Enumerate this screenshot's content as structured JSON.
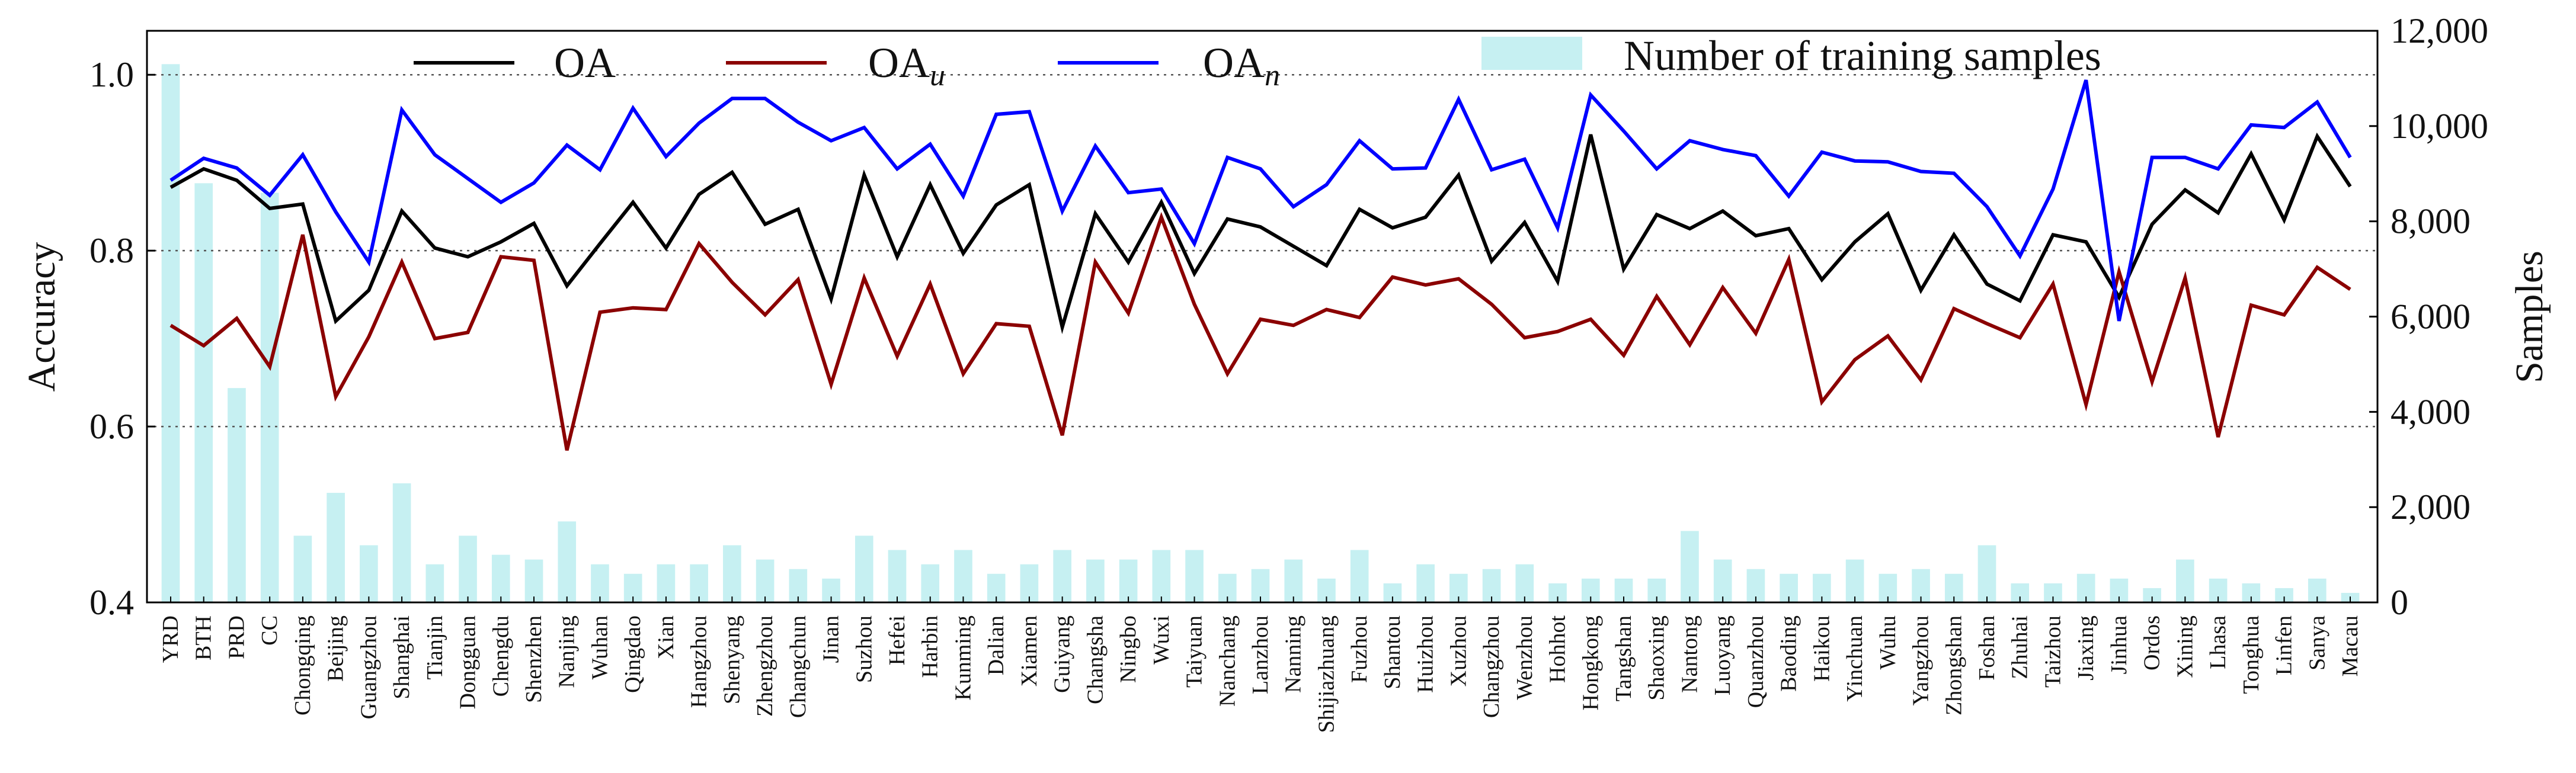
{
  "chart_data": {
    "type": "line+bar",
    "title": "",
    "xlabel": "",
    "ylabel": "Accuracy",
    "y2label": "Samples",
    "ylim": [
      0.4,
      1.05
    ],
    "y2lim": [
      0,
      12000
    ],
    "yticks": [
      "0.4",
      "0.6",
      "0.8",
      "1.0"
    ],
    "y2ticks": [
      "0",
      "2,000",
      "4,000",
      "6,000",
      "8,000",
      "10,000",
      "12,000"
    ],
    "grid": "dotted horizontal at 0.6, 0.8, 1.0",
    "categories": [
      "YRD",
      "BTH",
      "PRD",
      "CC",
      "Chongqing",
      "Beijing",
      "Guangzhou",
      "Shanghai",
      "Tianjin",
      "Dongguan",
      "Chengdu",
      "Shenzhen",
      "Nanjing",
      "Wuhan",
      "Qingdao",
      "Xian",
      "Hangzhou",
      "Shenyang",
      "Zhengzhou",
      "Changchun",
      "Jinan",
      "Suzhou",
      "Hefei",
      "Harbin",
      "Kunming",
      "Dalian",
      "Xiamen",
      "Guiyang",
      "Changsha",
      "Ningbo",
      "Wuxi",
      "Taiyuan",
      "Nanchang",
      "Lanzhou",
      "Nanning",
      "Shijiazhuang",
      "Fuzhou",
      "Shantou",
      "Huizhou",
      "Xuzhou",
      "Changzhou",
      "Wenzhou",
      "Hohhot",
      "Hongkong",
      "Tangshan",
      "Shaoxing",
      "Nantong",
      "Luoyang",
      "Quanzhou",
      "Baoding",
      "Haikou",
      "Yinchuan",
      "Wuhu",
      "Yangzhou",
      "Zhongshan",
      "Foshan",
      "Zhuhai",
      "Taizhou",
      "Jiaxing",
      "Jinhua",
      "Ordos",
      "Xining",
      "Lhasa",
      "Tonghua",
      "Linfen",
      "Sanya",
      "Macau"
    ],
    "series": [
      {
        "name": "OA",
        "legend_main": "OA",
        "legend_sub": "",
        "color": "#000000",
        "values": [
          0.872,
          0.893,
          0.88,
          0.848,
          0.853,
          0.72,
          0.755,
          0.845,
          0.803,
          0.793,
          0.81,
          0.831,
          0.76,
          0.808,
          0.855,
          0.803,
          0.864,
          0.889,
          0.83,
          0.847,
          0.745,
          0.886,
          0.793,
          0.875,
          0.797,
          0.852,
          0.875,
          0.713,
          0.842,
          0.787,
          0.855,
          0.774,
          0.836,
          0.827,
          0.805,
          0.783,
          0.847,
          0.826,
          0.838,
          0.886,
          0.788,
          0.832,
          0.765,
          0.932,
          0.779,
          0.841,
          0.825,
          0.845,
          0.817,
          0.825,
          0.767,
          0.81,
          0.842,
          0.755,
          0.818,
          0.762,
          0.743,
          0.818,
          0.81,
          0.747,
          0.83,
          0.869,
          0.843,
          0.91,
          0.835,
          0.93,
          0.873
        ]
      },
      {
        "name": "OAu",
        "legend_main": "OA",
        "legend_sub": "u",
        "color": "#8b0000",
        "values": [
          0.715,
          0.692,
          0.723,
          0.668,
          0.818,
          0.634,
          0.702,
          0.787,
          0.7,
          0.707,
          0.793,
          0.789,
          0.573,
          0.73,
          0.735,
          0.733,
          0.808,
          0.764,
          0.727,
          0.767,
          0.648,
          0.769,
          0.68,
          0.762,
          0.66,
          0.717,
          0.714,
          0.59,
          0.787,
          0.729,
          0.838,
          0.739,
          0.66,
          0.722,
          0.715,
          0.733,
          0.724,
          0.77,
          0.761,
          0.768,
          0.739,
          0.701,
          0.708,
          0.722,
          0.681,
          0.748,
          0.693,
          0.758,
          0.706,
          0.79,
          0.628,
          0.676,
          0.703,
          0.653,
          0.734,
          0.717,
          0.701,
          0.762,
          0.625,
          0.776,
          0.651,
          0.769,
          0.588,
          0.738,
          0.727,
          0.781,
          0.756
        ]
      },
      {
        "name": "OAn",
        "legend_main": "OA",
        "legend_sub": "n",
        "color": "#0000ff",
        "values": [
          0.88,
          0.905,
          0.894,
          0.863,
          0.909,
          0.844,
          0.787,
          0.96,
          0.909,
          0.882,
          0.855,
          0.877,
          0.92,
          0.892,
          0.962,
          0.907,
          0.945,
          0.973,
          0.973,
          0.946,
          0.925,
          0.94,
          0.893,
          0.921,
          0.862,
          0.955,
          0.958,
          0.845,
          0.919,
          0.866,
          0.87,
          0.808,
          0.906,
          0.893,
          0.85,
          0.875,
          0.925,
          0.893,
          0.894,
          0.972,
          0.892,
          0.904,
          0.826,
          0.977,
          0.936,
          0.893,
          0.925,
          0.915,
          0.908,
          0.862,
          0.912,
          0.902,
          0.901,
          0.89,
          0.888,
          0.85,
          0.794,
          0.87,
          0.994,
          0.72,
          0.906,
          0.906,
          0.893,
          0.943,
          0.94,
          0.969,
          0.906
        ]
      }
    ],
    "bars": {
      "name": "Number of training samples",
      "color": "#c6f0f2",
      "values": [
        11300,
        8800,
        4500,
        8600,
        1400,
        2300,
        1200,
        2500,
        800,
        1400,
        1000,
        900,
        1700,
        800,
        600,
        800,
        800,
        1200,
        900,
        700,
        500,
        1400,
        1100,
        800,
        1100,
        600,
        800,
        1100,
        900,
        900,
        1100,
        1100,
        600,
        700,
        900,
        500,
        1100,
        400,
        800,
        600,
        700,
        800,
        400,
        500,
        500,
        500,
        1500,
        900,
        700,
        600,
        600,
        900,
        600,
        700,
        600,
        1200,
        400,
        400,
        600,
        500,
        300,
        900,
        500,
        400,
        300,
        500,
        200
      ]
    },
    "legend_position": "top"
  }
}
